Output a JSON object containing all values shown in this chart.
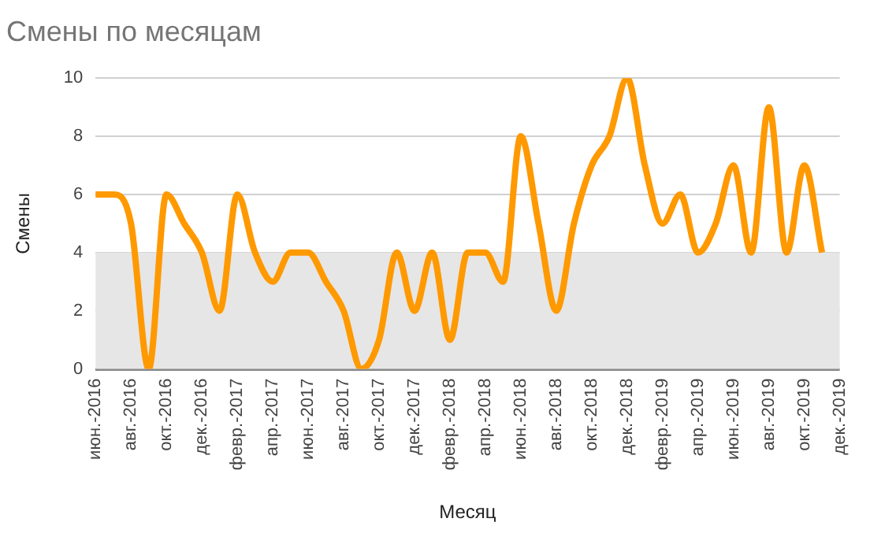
{
  "chart_data": {
    "type": "line",
    "title": "Смены по месяцам",
    "xlabel": "Месяц",
    "ylabel": "Смены",
    "categories": [
      "июн.-2016",
      null,
      "авг.-2016",
      null,
      "окт.-2016",
      null,
      "дек.-2016",
      null,
      "февр.-2017",
      null,
      "апр.-2017",
      null,
      "июн.-2017",
      null,
      "авг.-2017",
      null,
      "окт.-2017",
      null,
      "дек.-2017",
      null,
      "февр.-2018",
      null,
      "апр.-2018",
      null,
      "июн.-2018",
      null,
      "авг.-2018",
      null,
      "окт.-2018",
      null,
      "дек.-2018",
      null,
      "февр.-2019",
      null,
      "апр.-2019",
      null,
      "июн.-2019",
      null,
      "авг.-2019",
      null,
      "окт.-2019",
      null,
      "дек.-2019"
    ],
    "series": [
      {
        "color": "#ff9900",
        "values": [
          6,
          6,
          5,
          0,
          6,
          5,
          4,
          2,
          6,
          4,
          3,
          4,
          4,
          3,
          2,
          0,
          1,
          4,
          2,
          4,
          1,
          4,
          4,
          3,
          8,
          5,
          2,
          5,
          7,
          8,
          10,
          7,
          5,
          6,
          4,
          5,
          7,
          4,
          9,
          4,
          7,
          4,
          null
        ]
      }
    ],
    "ylim": [
      0,
      10
    ],
    "yticks": [
      0,
      2,
      4,
      6,
      8,
      10
    ],
    "grid": "y",
    "legend": false,
    "marker": "none",
    "bands": [
      {
        "axis": "y",
        "from": 0,
        "to": 4,
        "color": "#e6e6e6"
      }
    ]
  }
}
